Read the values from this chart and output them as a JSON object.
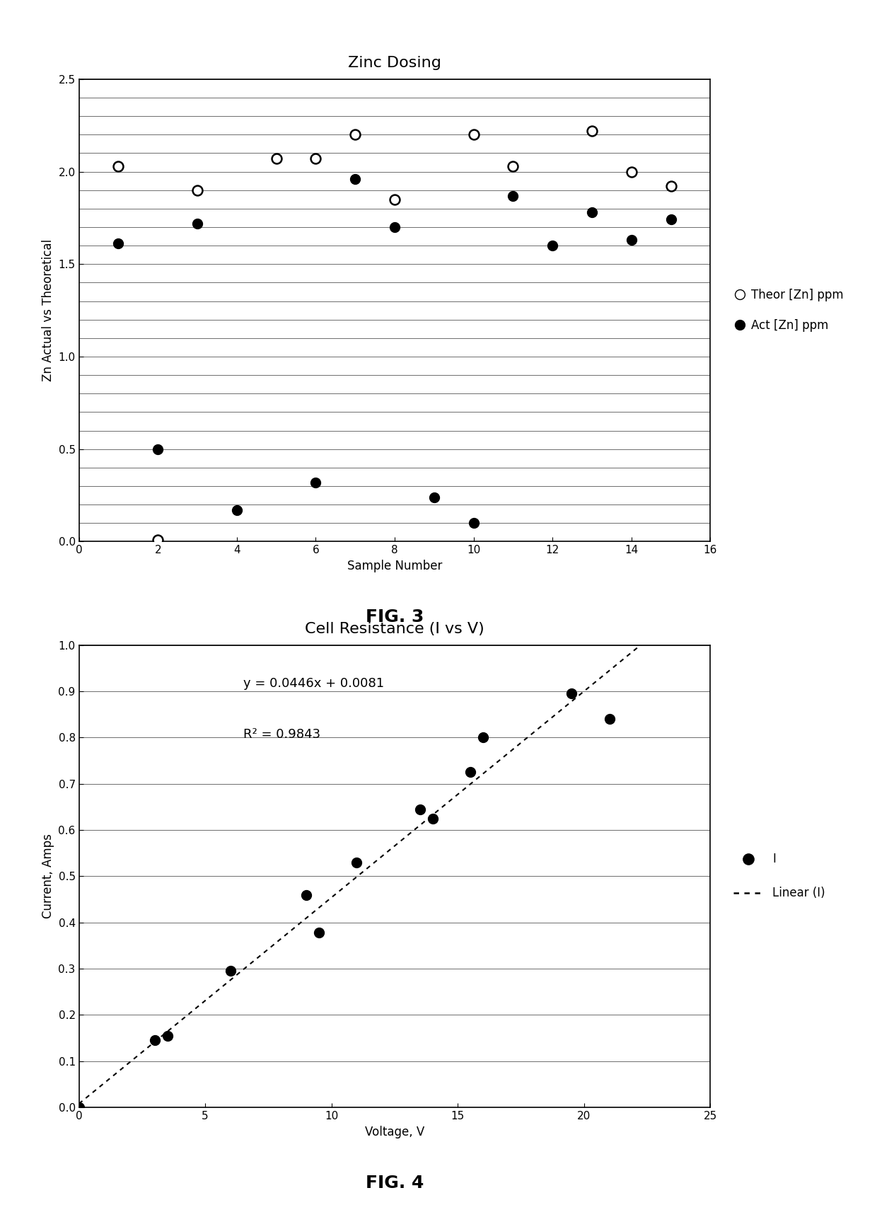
{
  "fig3": {
    "title": "Zinc Dosing",
    "xlabel": "Sample Number",
    "ylabel": "Zn Actual vs Theoretical",
    "xlim": [
      0,
      16
    ],
    "ylim": [
      0,
      2.5
    ],
    "xticks": [
      0,
      2,
      4,
      6,
      8,
      10,
      12,
      14,
      16
    ],
    "yticks": [
      0,
      0.5,
      1.0,
      1.5,
      2.0,
      2.5
    ],
    "ygrid_minor": 0.1,
    "theor_x": [
      1,
      2,
      3,
      5,
      6,
      7,
      8,
      10,
      11,
      13,
      14,
      15
    ],
    "theor_y": [
      2.03,
      0.01,
      1.9,
      2.07,
      2.07,
      2.2,
      1.85,
      2.2,
      2.03,
      2.22,
      2.0,
      1.92
    ],
    "act_x": [
      1,
      2,
      3,
      4,
      6,
      7,
      8,
      9,
      10,
      11,
      12,
      13,
      14,
      15
    ],
    "act_y": [
      1.61,
      0.5,
      1.72,
      0.17,
      0.32,
      1.96,
      1.7,
      0.24,
      0.1,
      1.87,
      1.6,
      1.78,
      1.63,
      1.74
    ],
    "legend_theor": "Theor [Zn] ppm",
    "legend_act": "Act [Zn] ppm",
    "fig_label": "FIG. 3"
  },
  "fig4": {
    "title": "Cell Resistance (I vs V)",
    "xlabel": "Voltage, V",
    "ylabel": "Current, Amps",
    "xlim": [
      0,
      25
    ],
    "ylim": [
      0,
      1
    ],
    "xticks": [
      0,
      5,
      10,
      15,
      20,
      25
    ],
    "yticks": [
      0,
      0.1,
      0.2,
      0.3,
      0.4,
      0.5,
      0.6,
      0.7,
      0.8,
      0.9,
      1.0
    ],
    "scatter_x": [
      0,
      3.0,
      3.5,
      6,
      9,
      9.5,
      11,
      13.5,
      14,
      15.5,
      16,
      19.5,
      21
    ],
    "scatter_y": [
      0,
      0.145,
      0.155,
      0.295,
      0.46,
      0.378,
      0.53,
      0.645,
      0.625,
      0.725,
      0.8,
      0.895,
      0.84
    ],
    "slope": 0.0446,
    "intercept": 0.0081,
    "r2": 0.9843,
    "equation": "y = 0.0446x + 0.0081",
    "r2_label": "R² = 0.9843",
    "legend_scatter": "I",
    "legend_line": "Linear (I)",
    "fig_label": "FIG. 4"
  },
  "background_color": "#ffffff"
}
